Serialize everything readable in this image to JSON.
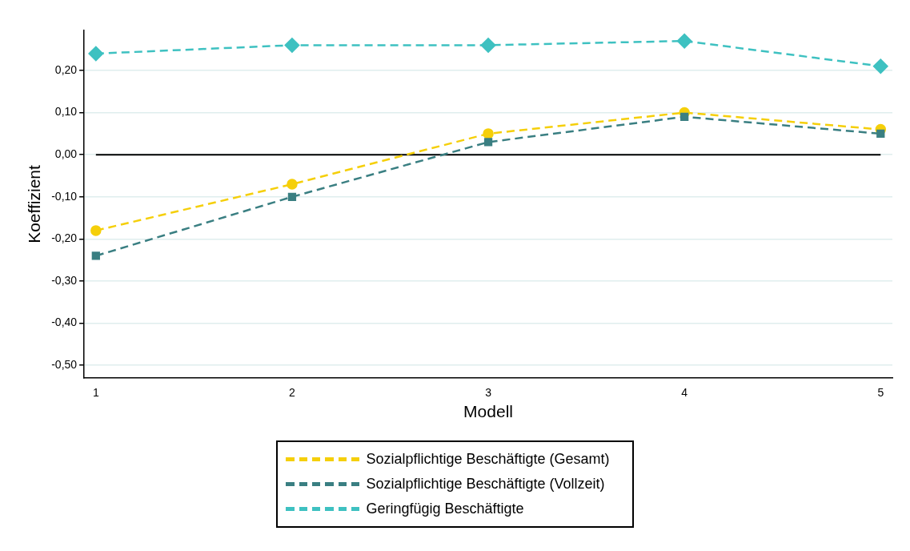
{
  "chart_data": {
    "type": "line",
    "xlabel": "Modell",
    "ylabel": "Koeffizient",
    "x": [
      1,
      2,
      3,
      4,
      5
    ],
    "xlim": [
      0.94,
      5.06
    ],
    "xticks": [
      1,
      2,
      3,
      4,
      5
    ],
    "ylim": [
      -0.53,
      0.295
    ],
    "yticks": [
      {
        "value": -0.5,
        "label": "-0,50"
      },
      {
        "value": -0.4,
        "label": "-0,40"
      },
      {
        "value": -0.3,
        "label": "-0,30"
      },
      {
        "value": -0.2,
        "label": "-0,20"
      },
      {
        "value": -0.1,
        "label": "-0,10"
      },
      {
        "value": 0,
        "label": "0,00"
      },
      {
        "value": 0.1,
        "label": "0,10"
      },
      {
        "value": 0.2,
        "label": "0,20"
      }
    ],
    "grid": "y",
    "legend": "bottom",
    "line_style": "dashed",
    "ref_lines": [
      {
        "axis": "y",
        "value": 0,
        "color": "#000000"
      }
    ],
    "series": [
      {
        "name": "Sozialpflichtige Beschäftigte (Gesamt)",
        "color": "#f5cf0a",
        "marker": "circle",
        "values": [
          -0.18,
          -0.07,
          0.05,
          0.1,
          0.06
        ]
      },
      {
        "name": "Sozialpflichtige Beschäftigte (Vollzeit)",
        "color": "#3a7f82",
        "marker": "square",
        "values": [
          -0.24,
          -0.1,
          0.03,
          0.09,
          0.05
        ]
      },
      {
        "name": "Geringfügig Beschäftigte",
        "color": "#3ec1c1",
        "marker": "diamond",
        "values": [
          0.24,
          0.26,
          0.26,
          0.27,
          0.21
        ]
      }
    ]
  }
}
